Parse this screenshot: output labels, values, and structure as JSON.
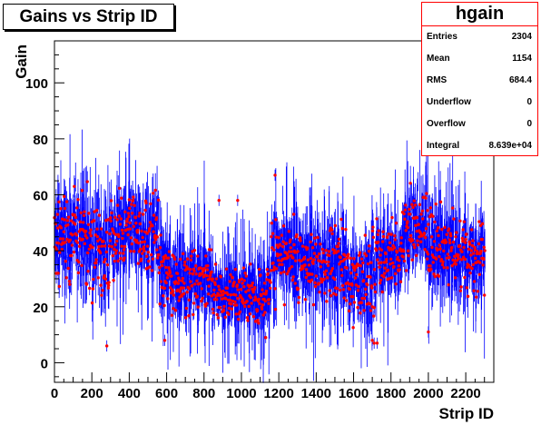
{
  "window": {
    "title": "Gains vs Strip ID"
  },
  "stats": {
    "name": "hgain",
    "rows": [
      {
        "key": "Entries",
        "value": "2304"
      },
      {
        "key": "Mean",
        "value": "1154"
      },
      {
        "key": "RMS",
        "value": "684.4"
      },
      {
        "key": "Underflow",
        "value": "0"
      },
      {
        "key": "Overflow",
        "value": "0"
      },
      {
        "key": "Integral",
        "value": "8.639e+04"
      }
    ]
  },
  "chart_data": {
    "type": "scatter",
    "title": "Gains vs Strip ID",
    "xlabel": "Strip ID",
    "ylabel": "Gain",
    "xlim": [
      0,
      2350
    ],
    "ylim": [
      -7,
      115
    ],
    "xticks": [
      0,
      200,
      400,
      600,
      800,
      1000,
      1200,
      1400,
      1600,
      1800,
      2000,
      2200
    ],
    "yticks": [
      0,
      20,
      40,
      60,
      80,
      100
    ],
    "grid": false,
    "colors": {
      "markers": "#ff0000",
      "error_bars": "#0000ff",
      "frame": "#000000"
    },
    "note_on_points": "2304 points (one per strip ID 0-2303) with vertical error bars; values estimated from the plot as a per-region band profile",
    "profile": [
      {
        "x": [
          0,
          100
        ],
        "center": 44,
        "spread": 14
      },
      {
        "x": [
          100,
          180
        ],
        "center": 47,
        "spread": 15
      },
      {
        "x": [
          180,
          260
        ],
        "center": 42,
        "spread": 13
      },
      {
        "x": [
          260,
          300
        ],
        "center": 40,
        "spread": 15
      },
      {
        "x": [
          300,
          420
        ],
        "center": 46,
        "spread": 14
      },
      {
        "x": [
          420,
          560
        ],
        "center": 45,
        "spread": 13
      },
      {
        "x": [
          560,
          620
        ],
        "center": 34,
        "spread": 16
      },
      {
        "x": [
          620,
          700
        ],
        "center": 30,
        "spread": 12
      },
      {
        "x": [
          700,
          840
        ],
        "center": 30,
        "spread": 12
      },
      {
        "x": [
          840,
          1000
        ],
        "center": 25,
        "spread": 8
      },
      {
        "x": [
          1000,
          1160
        ],
        "center": 25,
        "spread": 9
      },
      {
        "x": [
          1160,
          1300
        ],
        "center": 38,
        "spread": 12
      },
      {
        "x": [
          1300,
          1420
        ],
        "center": 37,
        "spread": 13
      },
      {
        "x": [
          1420,
          1560
        ],
        "center": 35,
        "spread": 13
      },
      {
        "x": [
          1560,
          1720
        ],
        "center": 30,
        "spread": 14
      },
      {
        "x": [
          1720,
          1860
        ],
        "center": 38,
        "spread": 10
      },
      {
        "x": [
          1860,
          2000
        ],
        "center": 48,
        "spread": 14
      },
      {
        "x": [
          2000,
          2150
        ],
        "center": 40,
        "spread": 12
      },
      {
        "x": [
          2150,
          2304
        ],
        "center": 37,
        "spread": 11
      }
    ],
    "outliers": [
      {
        "x": 280,
        "y": 6
      },
      {
        "x": 590,
        "y": 8
      },
      {
        "x": 1130,
        "y": 9
      },
      {
        "x": 1700,
        "y": 8
      },
      {
        "x": 1710,
        "y": 7
      },
      {
        "x": 1726,
        "y": 7
      },
      {
        "x": 2000,
        "y": 11
      },
      {
        "x": 880,
        "y": 58
      },
      {
        "x": 980,
        "y": 58
      },
      {
        "x": 1180,
        "y": 67
      }
    ]
  }
}
